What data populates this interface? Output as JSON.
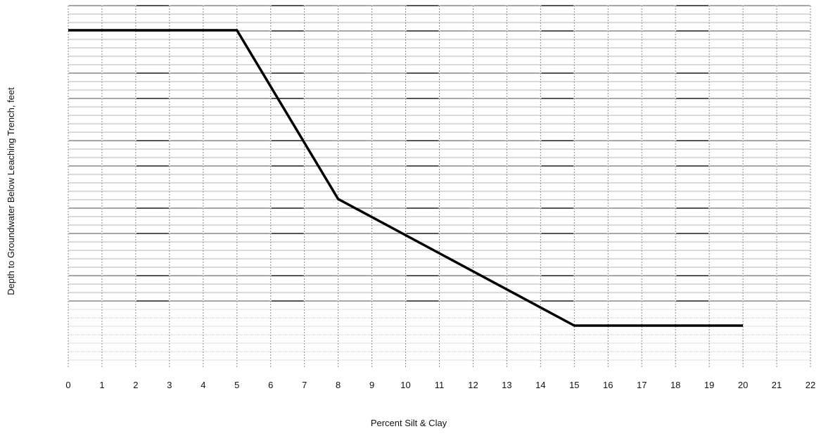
{
  "chart_data": {
    "type": "line",
    "title": "",
    "xlabel": "Percent Silt & Clay",
    "ylabel": "Depth to Groundwater Below Leaching Trench, feet",
    "xlim": [
      0,
      22
    ],
    "x_ticks": [
      "0",
      "1",
      "2",
      "3",
      "4",
      "5",
      "6",
      "7",
      "8",
      "9",
      "10",
      "11",
      "12",
      "13",
      "14",
      "15",
      "16",
      "17",
      "18",
      "19",
      "20",
      "21",
      "22"
    ],
    "y_tick_labels_shown": false,
    "grid": true,
    "series": [
      {
        "x": [
          0,
          5,
          8,
          15,
          20
        ],
        "y": [
          40.0,
          40.0,
          20.0,
          5.0,
          5.0
        ]
      }
    ],
    "colors": {
      "line": "#000000",
      "grid": "#9a9a9a",
      "text": "#111111"
    }
  }
}
